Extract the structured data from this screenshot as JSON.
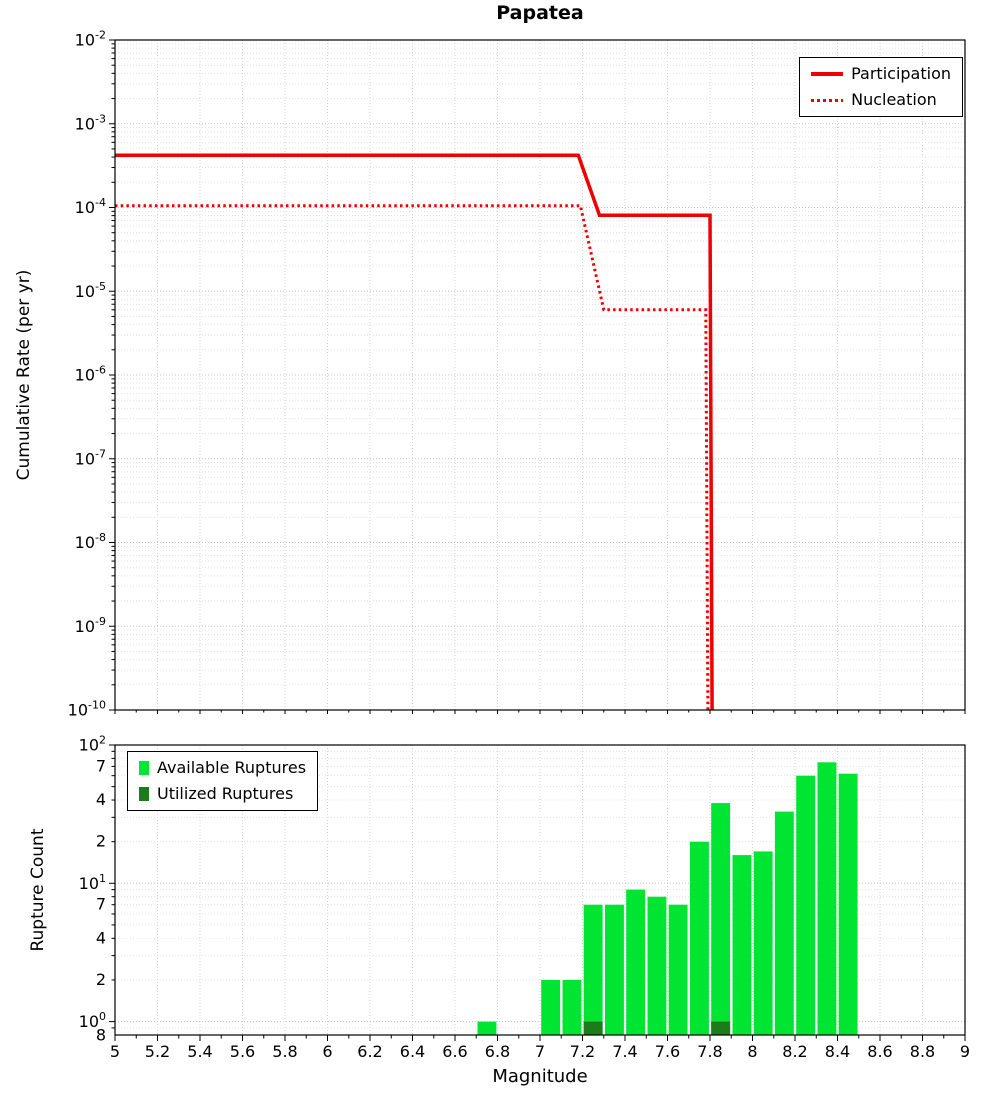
{
  "chart_data": [
    {
      "type": "line",
      "title": "Papatea",
      "ylabel": "Cumulative Rate (per yr)",
      "x_range": [
        5,
        9
      ],
      "y_axis": {
        "scale": "log",
        "min_exp": -10,
        "max_exp": -2,
        "decade_exponents": [
          -2,
          -3,
          -4,
          -5,
          -6,
          -7,
          -8,
          -9,
          -10
        ]
      },
      "grid": true,
      "legend_position": "top-right",
      "series": [
        {
          "name": "Participation",
          "style": "solid",
          "color": "#ee0000",
          "line_width": 3.5,
          "points": [
            [
              5,
              0.00042
            ],
            [
              7.18,
              0.00042
            ],
            [
              7.28,
              8.1e-05
            ],
            [
              7.8,
              8.1e-05
            ],
            [
              7.81,
              1e-10
            ]
          ]
        },
        {
          "name": "Nucleation",
          "style": "dotted",
          "color": "#ee0000",
          "line_width": 3,
          "points": [
            [
              5,
              0.000105
            ],
            [
              7.19,
              0.000105
            ],
            [
              7.3,
              6e-06
            ],
            [
              7.78,
              6e-06
            ],
            [
              7.79,
              1e-10
            ]
          ]
        }
      ]
    },
    {
      "type": "bar",
      "ylabel": "Rupture Count",
      "xlabel": "Magnitude",
      "x_range": [
        5,
        9
      ],
      "bin_width": 0.1,
      "grid": true,
      "legend_position": "top-left",
      "y_axis": {
        "scale": "log",
        "min": 0.8,
        "max": 100,
        "decade_exponents": [
          0,
          1,
          2
        ],
        "minor_labeled_mantissas": [
          2,
          4,
          7
        ],
        "min_edge_label": "8"
      },
      "x_axis": {
        "major_tick_values": [
          5,
          5.2,
          5.4,
          5.6,
          5.8,
          6,
          6.2,
          6.4,
          6.6,
          6.8,
          7,
          7.2,
          7.4,
          7.6,
          7.8,
          8,
          8.2,
          8.4,
          8.6,
          8.8,
          9
        ],
        "major_tick_labels": [
          "5",
          "5.2",
          "5.4",
          "5.6",
          "5.8",
          "6",
          "6.2",
          "6.4",
          "6.6",
          "6.8",
          "7",
          "7.2",
          "7.4",
          "7.6",
          "7.8",
          "8",
          "8.2",
          "8.4",
          "8.6",
          "8.8",
          "9"
        ],
        "minor_tick_step": 0.1
      },
      "series": [
        {
          "name": "Available Ruptures",
          "color": "#00e432",
          "bars": [
            [
              6.7,
              1
            ],
            [
              7.0,
              2
            ],
            [
              7.1,
              2
            ],
            [
              7.2,
              7
            ],
            [
              7.3,
              7
            ],
            [
              7.4,
              9
            ],
            [
              7.5,
              8
            ],
            [
              7.6,
              7
            ],
            [
              7.7,
              20
            ],
            [
              7.8,
              38
            ],
            [
              7.9,
              16
            ],
            [
              8.0,
              17
            ],
            [
              8.1,
              33
            ],
            [
              8.2,
              60
            ],
            [
              8.3,
              75
            ],
            [
              8.4,
              62
            ]
          ]
        },
        {
          "name": "Utilized Ruptures",
          "color": "#1c7c1c",
          "bars": [
            [
              7.2,
              1
            ],
            [
              7.8,
              1
            ]
          ]
        }
      ]
    }
  ]
}
